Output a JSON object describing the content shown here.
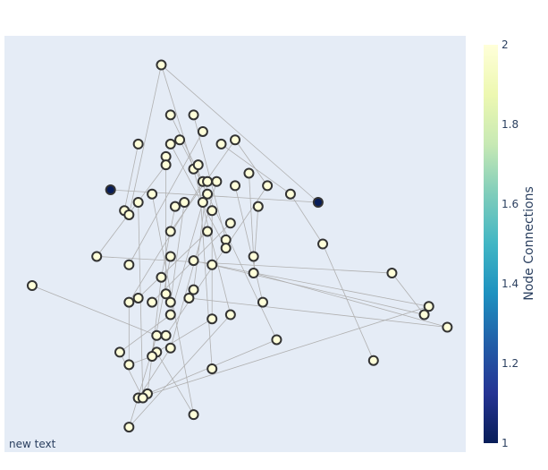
{
  "chart_data": {
    "type": "scatter",
    "title": "",
    "xaxis_visible": false,
    "yaxis_visible": false,
    "grid": false,
    "plot_background": "#e5ecf6",
    "edge_color": "#b0b0b0",
    "node_outline_color": "#333333",
    "annotation": "new text",
    "colorbar": {
      "title": "Node Connections",
      "colorscale": "YlGnBu (reversed)",
      "range": [
        1,
        2
      ],
      "ticks": [
        "1",
        "1.2",
        "1.4",
        "1.6",
        "1.8",
        "2"
      ],
      "stops": [
        "#081d58",
        "#253494",
        "#225ea8",
        "#1d91c0",
        "#41b6c4",
        "#7fcdbb",
        "#c7e9b4",
        "#edf8b1",
        "#ffffd9"
      ]
    },
    "nodes": [
      {
        "x": 0.34,
        "y": 0.93,
        "c": 2
      },
      {
        "x": 0.36,
        "y": 0.81,
        "c": 2
      },
      {
        "x": 0.41,
        "y": 0.81,
        "c": 2
      },
      {
        "x": 0.43,
        "y": 0.77,
        "c": 2
      },
      {
        "x": 0.29,
        "y": 0.74,
        "c": 2
      },
      {
        "x": 0.36,
        "y": 0.74,
        "c": 2
      },
      {
        "x": 0.38,
        "y": 0.75,
        "c": 2
      },
      {
        "x": 0.47,
        "y": 0.74,
        "c": 2
      },
      {
        "x": 0.5,
        "y": 0.75,
        "c": 2
      },
      {
        "x": 0.35,
        "y": 0.71,
        "c": 2
      },
      {
        "x": 0.35,
        "y": 0.69,
        "c": 2
      },
      {
        "x": 0.41,
        "y": 0.68,
        "c": 2
      },
      {
        "x": 0.42,
        "y": 0.69,
        "c": 2
      },
      {
        "x": 0.53,
        "y": 0.67,
        "c": 2
      },
      {
        "x": 0.57,
        "y": 0.64,
        "c": 2
      },
      {
        "x": 0.43,
        "y": 0.65,
        "c": 2
      },
      {
        "x": 0.44,
        "y": 0.65,
        "c": 2
      },
      {
        "x": 0.46,
        "y": 0.65,
        "c": 2
      },
      {
        "x": 0.5,
        "y": 0.64,
        "c": 2
      },
      {
        "x": 0.23,
        "y": 0.63,
        "c": 1
      },
      {
        "x": 0.32,
        "y": 0.62,
        "c": 2
      },
      {
        "x": 0.44,
        "y": 0.62,
        "c": 2
      },
      {
        "x": 0.62,
        "y": 0.62,
        "c": 2
      },
      {
        "x": 0.68,
        "y": 0.6,
        "c": 1
      },
      {
        "x": 0.29,
        "y": 0.6,
        "c": 2
      },
      {
        "x": 0.37,
        "y": 0.59,
        "c": 2
      },
      {
        "x": 0.39,
        "y": 0.6,
        "c": 2
      },
      {
        "x": 0.43,
        "y": 0.6,
        "c": 2
      },
      {
        "x": 0.45,
        "y": 0.58,
        "c": 2
      },
      {
        "x": 0.55,
        "y": 0.59,
        "c": 2
      },
      {
        "x": 0.26,
        "y": 0.58,
        "c": 2
      },
      {
        "x": 0.27,
        "y": 0.57,
        "c": 2
      },
      {
        "x": 0.49,
        "y": 0.55,
        "c": 2
      },
      {
        "x": 0.36,
        "y": 0.53,
        "c": 2
      },
      {
        "x": 0.44,
        "y": 0.53,
        "c": 2
      },
      {
        "x": 0.48,
        "y": 0.51,
        "c": 2
      },
      {
        "x": 0.69,
        "y": 0.5,
        "c": 2
      },
      {
        "x": 0.48,
        "y": 0.49,
        "c": 2
      },
      {
        "x": 0.36,
        "y": 0.47,
        "c": 2
      },
      {
        "x": 0.54,
        "y": 0.47,
        "c": 2
      },
      {
        "x": 0.2,
        "y": 0.47,
        "c": 2
      },
      {
        "x": 0.27,
        "y": 0.45,
        "c": 2
      },
      {
        "x": 0.41,
        "y": 0.46,
        "c": 2
      },
      {
        "x": 0.45,
        "y": 0.45,
        "c": 2
      },
      {
        "x": 0.54,
        "y": 0.43,
        "c": 2
      },
      {
        "x": 0.84,
        "y": 0.43,
        "c": 2
      },
      {
        "x": 0.06,
        "y": 0.4,
        "c": 2
      },
      {
        "x": 0.34,
        "y": 0.42,
        "c": 2
      },
      {
        "x": 0.41,
        "y": 0.39,
        "c": 2
      },
      {
        "x": 0.35,
        "y": 0.38,
        "c": 2
      },
      {
        "x": 0.29,
        "y": 0.37,
        "c": 2
      },
      {
        "x": 0.4,
        "y": 0.37,
        "c": 2
      },
      {
        "x": 0.27,
        "y": 0.36,
        "c": 2
      },
      {
        "x": 0.32,
        "y": 0.36,
        "c": 2
      },
      {
        "x": 0.36,
        "y": 0.36,
        "c": 2
      },
      {
        "x": 0.56,
        "y": 0.36,
        "c": 2
      },
      {
        "x": 0.92,
        "y": 0.35,
        "c": 2
      },
      {
        "x": 0.36,
        "y": 0.33,
        "c": 2
      },
      {
        "x": 0.49,
        "y": 0.33,
        "c": 2
      },
      {
        "x": 0.45,
        "y": 0.32,
        "c": 2
      },
      {
        "x": 0.91,
        "y": 0.33,
        "c": 2
      },
      {
        "x": 0.96,
        "y": 0.3,
        "c": 2
      },
      {
        "x": 0.33,
        "y": 0.28,
        "c": 2
      },
      {
        "x": 0.35,
        "y": 0.28,
        "c": 2
      },
      {
        "x": 0.59,
        "y": 0.27,
        "c": 2
      },
      {
        "x": 0.25,
        "y": 0.24,
        "c": 2
      },
      {
        "x": 0.33,
        "y": 0.24,
        "c": 2
      },
      {
        "x": 0.36,
        "y": 0.25,
        "c": 2
      },
      {
        "x": 0.32,
        "y": 0.23,
        "c": 2
      },
      {
        "x": 0.8,
        "y": 0.22,
        "c": 2
      },
      {
        "x": 0.27,
        "y": 0.21,
        "c": 2
      },
      {
        "x": 0.45,
        "y": 0.2,
        "c": 2
      },
      {
        "x": 0.29,
        "y": 0.13,
        "c": 2
      },
      {
        "x": 0.31,
        "y": 0.14,
        "c": 2
      },
      {
        "x": 0.3,
        "y": 0.13,
        "c": 2
      },
      {
        "x": 0.41,
        "y": 0.09,
        "c": 2
      },
      {
        "x": 0.27,
        "y": 0.06,
        "c": 2
      }
    ],
    "edges": [
      [
        0,
        11
      ],
      [
        0,
        31
      ],
      [
        0,
        23
      ],
      [
        1,
        15
      ],
      [
        2,
        35
      ],
      [
        3,
        41
      ],
      [
        4,
        30
      ],
      [
        5,
        37
      ],
      [
        6,
        21
      ],
      [
        7,
        22
      ],
      [
        8,
        14
      ],
      [
        8,
        33
      ],
      [
        9,
        49
      ],
      [
        10,
        40
      ],
      [
        11,
        58
      ],
      [
        12,
        71
      ],
      [
        13,
        39
      ],
      [
        14,
        63
      ],
      [
        15,
        52
      ],
      [
        16,
        48
      ],
      [
        17,
        67
      ],
      [
        18,
        55
      ],
      [
        20,
        75
      ],
      [
        21,
        64
      ],
      [
        22,
        36
      ],
      [
        24,
        74
      ],
      [
        25,
        47
      ],
      [
        26,
        54
      ],
      [
        27,
        57
      ],
      [
        28,
        59
      ],
      [
        29,
        44
      ],
      [
        32,
        53
      ],
      [
        34,
        50
      ],
      [
        36,
        69
      ],
      [
        38,
        68
      ],
      [
        40,
        45
      ],
      [
        42,
        60
      ],
      [
        43,
        56
      ],
      [
        44,
        61
      ],
      [
        45,
        60
      ],
      [
        46,
        62
      ],
      [
        47,
        73
      ],
      [
        51,
        61
      ],
      [
        52,
        70
      ],
      [
        56,
        72
      ],
      [
        57,
        65
      ],
      [
        58,
        76
      ],
      [
        59,
        66
      ],
      [
        62,
        76
      ],
      [
        64,
        73
      ],
      [
        65,
        74
      ],
      [
        66,
        75
      ],
      [
        67,
        72
      ],
      [
        68,
        70
      ],
      [
        19,
        23
      ]
    ]
  }
}
